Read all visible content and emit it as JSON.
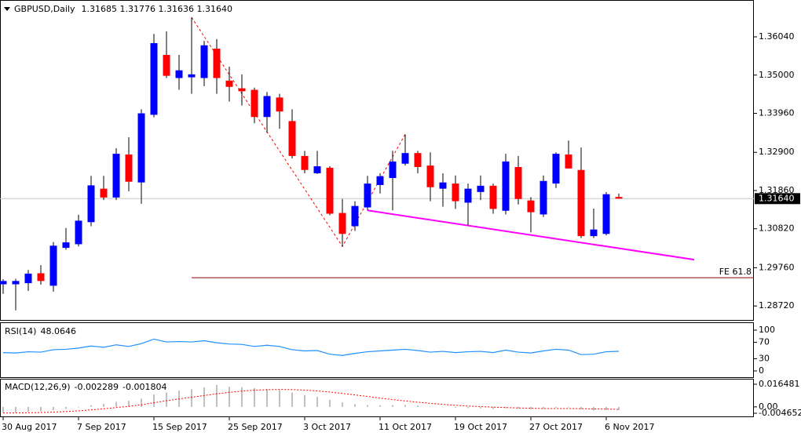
{
  "chart_data": [
    {
      "type": "candlestick",
      "title": "GBPUSD,Daily",
      "subtitle": "1.31685 1.31776 1.31636 1.31640",
      "categories": [
        "30 Aug 2017",
        null,
        null,
        null,
        null,
        null,
        "7 Sep 2017",
        null,
        null,
        null,
        null,
        null,
        "15 Sep 2017",
        null,
        null,
        null,
        null,
        null,
        "25 Sep 2017",
        null,
        null,
        null,
        null,
        null,
        "3 Oct 2017",
        null,
        null,
        null,
        null,
        null,
        "11 Oct 2017",
        null,
        null,
        null,
        null,
        null,
        "19 Oct 2017",
        null,
        null,
        null,
        null,
        null,
        "27 Oct 2017",
        null,
        null,
        null,
        null,
        null,
        "6 Nov 2017",
        null
      ],
      "open": [
        1.2931,
        1.2931,
        1.2934,
        1.2961,
        1.2927,
        1.303,
        1.304,
        1.31,
        1.3191,
        1.3167,
        1.3284,
        1.3208,
        1.3392,
        1.3555,
        1.3492,
        1.3494,
        1.3492,
        1.3572,
        1.3485,
        1.3464,
        1.346,
        1.3386,
        1.3439,
        1.3375,
        1.328,
        1.3233,
        1.3248,
        1.3125,
        1.3089,
        1.314,
        1.3201,
        1.322,
        1.3259,
        1.3288,
        1.3254,
        1.3191,
        1.3205,
        1.3153,
        1.3182,
        1.3199,
        1.3131,
        1.325,
        1.3159,
        1.3121,
        1.3205,
        1.3284,
        1.3242,
        1.3062,
        1.3068,
        1.31685
      ],
      "high": [
        1.2945,
        1.2946,
        1.297,
        1.2983,
        1.3046,
        1.3084,
        1.312,
        1.3226,
        1.3226,
        1.3301,
        1.3331,
        1.3407,
        1.3612,
        1.3619,
        1.3555,
        1.3657,
        1.3593,
        1.3598,
        1.3523,
        1.3502,
        1.3466,
        1.3454,
        1.3449,
        1.3407,
        1.3294,
        1.3294,
        1.3252,
        1.3163,
        1.3157,
        1.3226,
        1.3233,
        1.3294,
        1.3339,
        1.3294,
        1.329,
        1.3233,
        1.3227,
        1.3205,
        1.3227,
        1.3205,
        1.3286,
        1.328,
        1.3168,
        1.3227,
        1.329,
        1.3322,
        1.3303,
        1.3137,
        1.3182,
        1.31776
      ],
      "low": [
        1.2905,
        1.286,
        1.2913,
        1.293,
        1.2911,
        1.3025,
        1.3034,
        1.3089,
        1.316,
        1.316,
        1.3184,
        1.315,
        1.3385,
        1.3492,
        1.346,
        1.3449,
        1.347,
        1.3449,
        1.3428,
        1.3417,
        1.3369,
        1.3343,
        1.3354,
        1.3273,
        1.3233,
        1.3231,
        1.3119,
        1.3034,
        1.3076,
        1.3132,
        1.3178,
        1.3132,
        1.3254,
        1.3233,
        1.3157,
        1.3142,
        1.3136,
        1.3091,
        1.316,
        1.3123,
        1.3121,
        1.3148,
        1.3072,
        1.3114,
        1.3193,
        1.3246,
        1.3057,
        1.3057,
        1.3064,
        1.31636
      ],
      "close": [
        1.294,
        1.294,
        1.296,
        1.294,
        1.3036,
        1.3045,
        1.3104,
        1.32,
        1.3167,
        1.3286,
        1.321,
        1.3396,
        1.3587,
        1.3498,
        1.3513,
        1.3502,
        1.3581,
        1.3492,
        1.3468,
        1.3456,
        1.3386,
        1.3443,
        1.3401,
        1.328,
        1.3242,
        1.3252,
        1.3123,
        1.3068,
        1.3144,
        1.3205,
        1.3225,
        1.3265,
        1.3288,
        1.325,
        1.3195,
        1.3208,
        1.3157,
        1.3191,
        1.3199,
        1.3136,
        1.3265,
        1.3163,
        1.3127,
        1.3212,
        1.3286,
        1.3246,
        1.3062,
        1.308,
        1.3176,
        1.3164
      ],
      "up_color": "#0000ff",
      "down_color": "#ff0000",
      "ylim": [
        1.2834,
        1.37
      ],
      "yticks": [
        {
          "value": 1.3604,
          "label": "1.36040"
        },
        {
          "value": 1.35,
          "label": "1.35000"
        },
        {
          "value": 1.3396,
          "label": "1.33960"
        },
        {
          "value": 1.329,
          "label": "1.32900"
        },
        {
          "value": 1.3186,
          "label": "1.31860"
        },
        {
          "value": 1.3082,
          "label": "1.30820"
        },
        {
          "value": 1.2976,
          "label": "1.29760"
        },
        {
          "value": 1.2872,
          "label": "1.28720"
        }
      ],
      "last_price": {
        "value": 1.3164,
        "label": "1.31640"
      },
      "fe_line": {
        "label": "FE 61.8",
        "value": 1.2949,
        "x_start": 15,
        "color": "#8b0000"
      },
      "trendline": {
        "x": [
          29,
          55
        ],
        "y": [
          1.3132,
          1.2998
        ],
        "color": "#ff00ff"
      },
      "zigzag": {
        "x": [
          15,
          27,
          32
        ],
        "y": [
          1.3657,
          1.3034,
          1.3339
        ],
        "color": "#ff0000"
      }
    },
    {
      "type": "line",
      "title": "RSI(14)",
      "color": "#1e90ff",
      "values": [
        45,
        44,
        47,
        46,
        52,
        53,
        56,
        61,
        58,
        64,
        60,
        67,
        78,
        71,
        72,
        71,
        74,
        69,
        66,
        65,
        60,
        63,
        60,
        52,
        49,
        50,
        41,
        38,
        43,
        47,
        49,
        51,
        53,
        50,
        46,
        48,
        45,
        47,
        48,
        45,
        51,
        46,
        44,
        49,
        53,
        51,
        40,
        41,
        47,
        48.0646
      ],
      "ylim": [
        0,
        100
      ],
      "yticks": [
        100,
        70,
        30,
        0
      ]
    },
    {
      "type": "bar",
      "title": "MACD(12,26,9)",
      "series": [
        {
          "type": "bar",
          "color": "#c0c0c0",
          "values": [
            -0.0042,
            -0.004,
            -0.0036,
            -0.0033,
            -0.0024,
            -0.0015,
            -0.0004,
            0.0012,
            0.0022,
            0.0036,
            0.0044,
            0.006,
            0.009,
            0.0105,
            0.0118,
            0.0128,
            0.0142,
            0.016,
            0.0147,
            0.0144,
            0.0136,
            0.0131,
            0.0122,
            0.0104,
            0.0086,
            0.0072,
            0.0052,
            0.0032,
            0.002,
            0.0014,
            0.0012,
            0.0013,
            0.0014,
            0.001,
            0.0003,
            -0.0002,
            -0.0007,
            -0.0009,
            -0.0011,
            -0.0016,
            -0.001,
            -0.0012,
            -0.0017,
            -0.0014,
            -0.0006,
            -0.0004,
            -0.0018,
            -0.0026,
            -0.0024,
            -0.002289
          ]
        },
        {
          "type": "line",
          "color": "#ff0000",
          "values": [
            -0.0045,
            -0.0044,
            -0.0043,
            -0.0041,
            -0.0038,
            -0.0034,
            -0.0029,
            -0.0022,
            -0.0014,
            -0.0005,
            0.0004,
            0.0015,
            0.003,
            0.0045,
            0.0058,
            0.007,
            0.0083,
            0.0095,
            0.0106,
            0.0115,
            0.0121,
            0.0125,
            0.0127,
            0.0126,
            0.0122,
            0.0116,
            0.0108,
            0.0098,
            0.0087,
            0.0076,
            0.0064,
            0.0053,
            0.0043,
            0.0034,
            0.0026,
            0.0018,
            0.0012,
            0.0006,
            0.0002,
            -0.0002,
            -0.0005,
            -0.0008,
            -0.001,
            -0.0012,
            -0.0012,
            -0.0012,
            -0.0013,
            -0.0015,
            -0.0016,
            -0.001804
          ]
        }
      ],
      "ylim": [
        -0.004652,
        0.016481
      ],
      "yticks": [
        0.016481,
        {
          "value": 0,
          "label": "0.00"
        },
        -0.004652
      ]
    }
  ]
}
